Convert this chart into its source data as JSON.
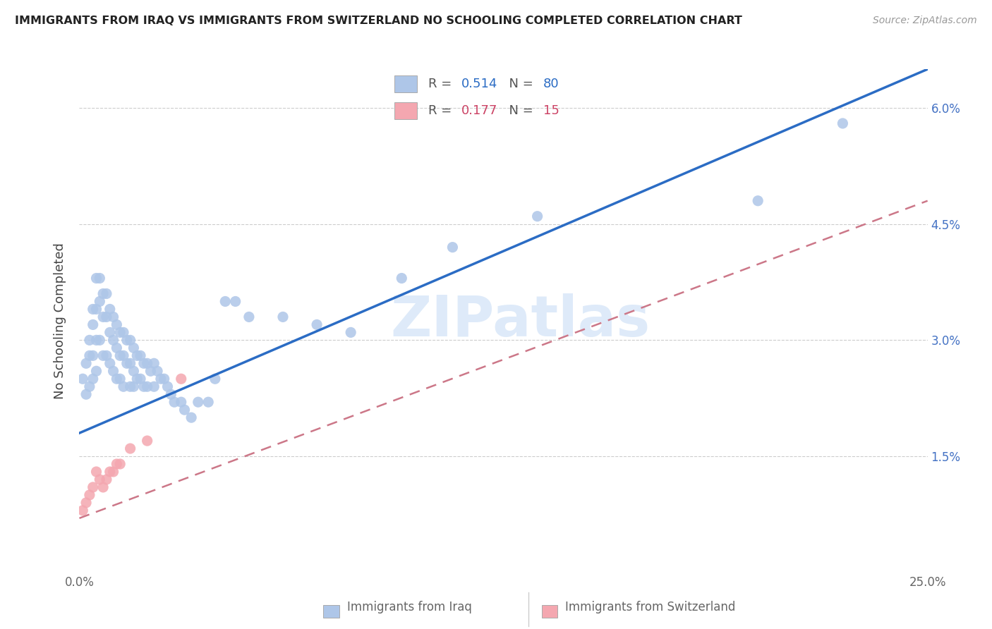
{
  "title": "IMMIGRANTS FROM IRAQ VS IMMIGRANTS FROM SWITZERLAND NO SCHOOLING COMPLETED CORRELATION CHART",
  "source": "Source: ZipAtlas.com",
  "ylabel": "No Schooling Completed",
  "xlim": [
    0.0,
    0.25
  ],
  "ylim": [
    0.0,
    0.065
  ],
  "iraq_R": "0.514",
  "iraq_N": "80",
  "swiss_R": "0.177",
  "swiss_N": "15",
  "iraq_color": "#aec6e8",
  "swiss_color": "#f4a7b0",
  "iraq_line_color": "#2b6cc4",
  "swiss_line_color": "#cc7788",
  "r_n_color_iraq": "#2b6cc4",
  "r_n_color_swiss": "#cc4466",
  "watermark_color": "#c8ddf5",
  "iraq_x": [
    0.001,
    0.002,
    0.002,
    0.003,
    0.003,
    0.003,
    0.004,
    0.004,
    0.004,
    0.004,
    0.005,
    0.005,
    0.005,
    0.005,
    0.006,
    0.006,
    0.006,
    0.007,
    0.007,
    0.007,
    0.008,
    0.008,
    0.008,
    0.009,
    0.009,
    0.009,
    0.01,
    0.01,
    0.01,
    0.011,
    0.011,
    0.011,
    0.012,
    0.012,
    0.012,
    0.013,
    0.013,
    0.013,
    0.014,
    0.014,
    0.015,
    0.015,
    0.015,
    0.016,
    0.016,
    0.016,
    0.017,
    0.017,
    0.018,
    0.018,
    0.019,
    0.019,
    0.02,
    0.02,
    0.021,
    0.022,
    0.022,
    0.023,
    0.024,
    0.025,
    0.026,
    0.027,
    0.028,
    0.03,
    0.031,
    0.033,
    0.035,
    0.038,
    0.04,
    0.043,
    0.046,
    0.05,
    0.06,
    0.07,
    0.08,
    0.095,
    0.11,
    0.135,
    0.2,
    0.225
  ],
  "iraq_y": [
    0.025,
    0.027,
    0.023,
    0.03,
    0.028,
    0.024,
    0.034,
    0.032,
    0.028,
    0.025,
    0.038,
    0.034,
    0.03,
    0.026,
    0.038,
    0.035,
    0.03,
    0.036,
    0.033,
    0.028,
    0.036,
    0.033,
    0.028,
    0.034,
    0.031,
    0.027,
    0.033,
    0.03,
    0.026,
    0.032,
    0.029,
    0.025,
    0.031,
    0.028,
    0.025,
    0.031,
    0.028,
    0.024,
    0.03,
    0.027,
    0.03,
    0.027,
    0.024,
    0.029,
    0.026,
    0.024,
    0.028,
    0.025,
    0.028,
    0.025,
    0.027,
    0.024,
    0.027,
    0.024,
    0.026,
    0.027,
    0.024,
    0.026,
    0.025,
    0.025,
    0.024,
    0.023,
    0.022,
    0.022,
    0.021,
    0.02,
    0.022,
    0.022,
    0.025,
    0.035,
    0.035,
    0.033,
    0.033,
    0.032,
    0.031,
    0.038,
    0.042,
    0.046,
    0.048,
    0.058
  ],
  "swiss_x": [
    0.001,
    0.002,
    0.003,
    0.004,
    0.005,
    0.006,
    0.007,
    0.008,
    0.009,
    0.01,
    0.011,
    0.012,
    0.015,
    0.02,
    0.03
  ],
  "swiss_y": [
    0.008,
    0.009,
    0.01,
    0.011,
    0.013,
    0.012,
    0.011,
    0.012,
    0.013,
    0.013,
    0.014,
    0.014,
    0.016,
    0.017,
    0.025
  ]
}
